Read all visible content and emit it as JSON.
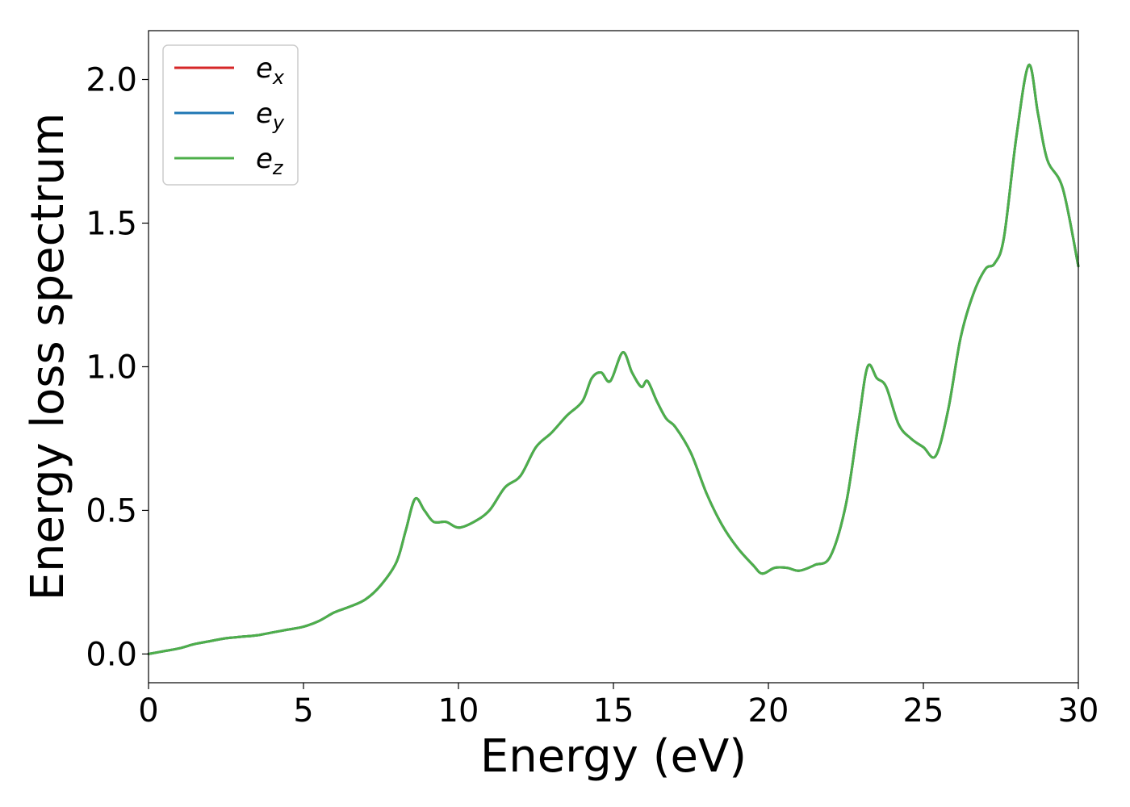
{
  "chart_data": {
    "type": "line",
    "title": "",
    "xlabel": "Energy (eV)",
    "ylabel": "Energy loss spectrum",
    "xlim": [
      0,
      30
    ],
    "ylim": [
      -0.1,
      2.17
    ],
    "x_ticks": [
      "0",
      "5",
      "10",
      "15",
      "20",
      "25",
      "30"
    ],
    "y_ticks": [
      "0.0",
      "0.5",
      "1.0",
      "1.5",
      "2.0"
    ],
    "grid": false,
    "legend_position": "top-left",
    "series": [
      {
        "name": "e",
        "subscript": "x",
        "color": "#d62728"
      },
      {
        "name": "e",
        "subscript": "y",
        "color": "#1f77b4"
      },
      {
        "name": "e",
        "subscript": "z",
        "color": "#4daf4a"
      }
    ],
    "x": [
      0,
      0.5,
      1,
      1.5,
      2,
      2.5,
      3,
      3.5,
      4,
      4.5,
      5,
      5.5,
      6,
      6.5,
      7,
      7.5,
      8,
      8.3,
      8.6,
      8.9,
      9.2,
      9.6,
      10,
      10.5,
      11,
      11.5,
      12,
      12.5,
      13,
      13.5,
      14,
      14.3,
      14.6,
      14.9,
      15.3,
      15.6,
      15.9,
      16.1,
      16.4,
      16.7,
      17,
      17.5,
      18,
      18.5,
      19,
      19.5,
      19.8,
      20.2,
      20.6,
      21,
      21.5,
      22,
      22.5,
      22.9,
      23.2,
      23.5,
      23.8,
      24.2,
      24.6,
      25,
      25.4,
      25.8,
      26.2,
      26.6,
      27,
      27.3,
      27.6,
      28,
      28.4,
      28.7,
      29,
      29.5,
      30
    ],
    "y": [
      0.0,
      0.01,
      0.02,
      0.035,
      0.045,
      0.055,
      0.06,
      0.065,
      0.075,
      0.085,
      0.095,
      0.115,
      0.145,
      0.165,
      0.19,
      0.24,
      0.32,
      0.43,
      0.54,
      0.5,
      0.46,
      0.46,
      0.44,
      0.46,
      0.5,
      0.58,
      0.62,
      0.72,
      0.77,
      0.83,
      0.88,
      0.96,
      0.98,
      0.95,
      1.05,
      0.98,
      0.93,
      0.95,
      0.88,
      0.82,
      0.79,
      0.7,
      0.56,
      0.45,
      0.37,
      0.31,
      0.28,
      0.3,
      0.3,
      0.29,
      0.31,
      0.34,
      0.52,
      0.8,
      1.0,
      0.96,
      0.93,
      0.8,
      0.75,
      0.72,
      0.69,
      0.85,
      1.1,
      1.25,
      1.34,
      1.36,
      1.45,
      1.8,
      2.05,
      1.88,
      1.72,
      1.62,
      1.35
    ]
  }
}
